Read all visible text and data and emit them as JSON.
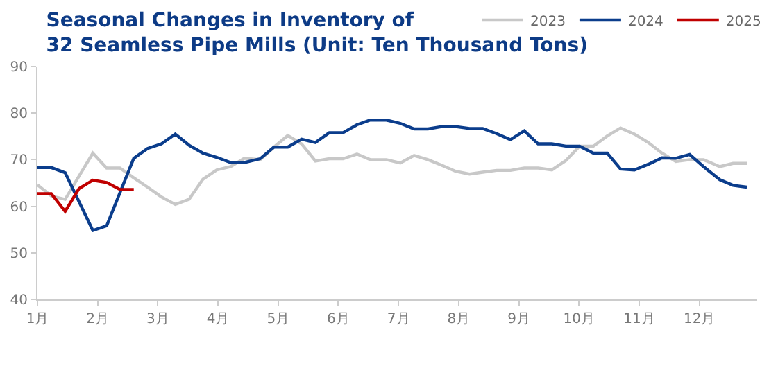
{
  "chart_data": {
    "type": "line",
    "title": "Seasonal Changes in Inventory of\n32 Seamless Pipe Mills (Unit: Ten Thousand Tons)",
    "xlim": [
      1,
      12.95
    ],
    "xticks": [
      {
        "value": 1,
        "label": "1月"
      },
      {
        "value": 2,
        "label": "2月"
      },
      {
        "value": 3,
        "label": "3月"
      },
      {
        "value": 4,
        "label": "4月"
      },
      {
        "value": 5,
        "label": "5月"
      },
      {
        "value": 6,
        "label": "6月"
      },
      {
        "value": 7,
        "label": "7月"
      },
      {
        "value": 8,
        "label": "8月"
      },
      {
        "value": 9,
        "label": "9月"
      },
      {
        "value": 10,
        "label": "10月"
      },
      {
        "value": 11,
        "label": "11月"
      },
      {
        "value": 12,
        "label": "12月"
      }
    ],
    "ylim": [
      40,
      90
    ],
    "yticks": [
      40,
      50,
      60,
      70,
      80,
      90
    ],
    "grid": false,
    "legend": "top right",
    "marker": "none",
    "line_style": "solid",
    "series": [
      {
        "name": "2023",
        "color": "#c8c8c8",
        "x": [
          1.0,
          1.23,
          1.46,
          1.92,
          2.15,
          2.37,
          2.6,
          2.83,
          3.06,
          3.29,
          3.52,
          3.75,
          3.98,
          4.21,
          4.44,
          4.7,
          4.93,
          5.16,
          5.39,
          5.62,
          5.85,
          6.08,
          6.31,
          6.53,
          6.8,
          7.03,
          7.26,
          7.49,
          7.72,
          7.95,
          8.18,
          8.4,
          8.63,
          8.86,
          9.09,
          9.32,
          9.55,
          9.78,
          10.01,
          10.24,
          10.47,
          10.69,
          10.92,
          11.15,
          11.38,
          11.61,
          11.84,
          12.07,
          12.34,
          12.56,
          12.79
        ],
        "values": [
          64.6,
          62.2,
          61.5,
          71.4,
          68.2,
          68.2,
          66.1,
          64.1,
          62.0,
          60.4,
          61.5,
          65.8,
          67.8,
          68.5,
          70.3,
          70.0,
          72.7,
          75.2,
          73.4,
          69.7,
          70.2,
          70.2,
          71.2,
          70.0,
          70.0,
          69.3,
          70.9,
          70.0,
          68.8,
          67.5,
          66.9,
          67.3,
          67.7,
          67.7,
          68.2,
          68.2,
          67.8,
          69.8,
          72.9,
          72.9,
          75.1,
          76.8,
          75.5,
          73.7,
          71.4,
          69.6,
          70.0,
          70.0,
          68.5,
          69.2,
          69.2
        ]
      },
      {
        "name": "2024",
        "color": "#0b3d8c",
        "x": [
          1.0,
          1.23,
          1.46,
          1.92,
          2.15,
          2.6,
          2.83,
          3.06,
          3.29,
          3.52,
          3.75,
          3.98,
          4.21,
          4.44,
          4.7,
          4.93,
          5.16,
          5.39,
          5.62,
          5.85,
          6.08,
          6.31,
          6.53,
          6.8,
          7.03,
          7.26,
          7.49,
          7.72,
          7.95,
          8.18,
          8.4,
          8.63,
          8.86,
          9.09,
          9.32,
          9.55,
          9.78,
          10.01,
          10.24,
          10.47,
          10.69,
          10.92,
          11.15,
          11.38,
          11.61,
          11.84,
          12.07,
          12.34,
          12.56,
          12.79
        ],
        "values": [
          68.3,
          68.3,
          67.2,
          54.8,
          55.8,
          70.3,
          72.4,
          73.4,
          75.5,
          73.1,
          71.4,
          70.5,
          69.4,
          69.4,
          70.2,
          72.7,
          72.7,
          74.4,
          73.7,
          75.8,
          75.8,
          77.5,
          78.5,
          78.5,
          77.8,
          76.6,
          76.6,
          77.1,
          77.1,
          76.7,
          76.7,
          75.6,
          74.3,
          76.2,
          73.4,
          73.4,
          72.9,
          72.9,
          71.4,
          71.4,
          68.0,
          67.8,
          69.0,
          70.4,
          70.3,
          71.1,
          68.5,
          65.7,
          64.5,
          64.1
        ]
      },
      {
        "name": "2025",
        "color": "#c00000",
        "x": [
          1.0,
          1.23,
          1.46,
          1.69,
          1.92,
          2.15,
          2.37,
          2.6
        ],
        "values": [
          62.7,
          62.7,
          58.9,
          63.8,
          65.6,
          65.1,
          63.6,
          63.6
        ]
      }
    ]
  }
}
